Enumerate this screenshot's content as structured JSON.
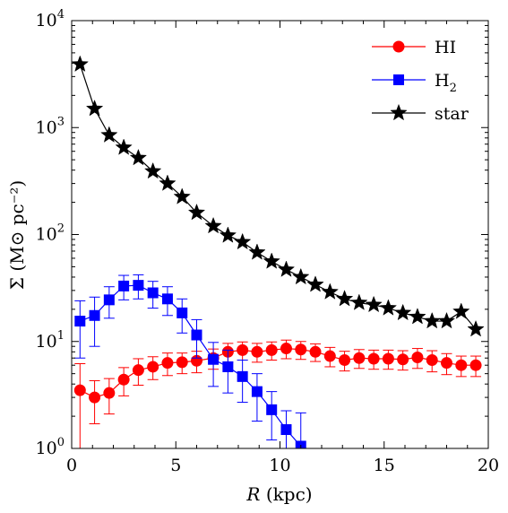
{
  "chart_data": {
    "type": "line",
    "title": "",
    "xlabel": "R (kpc)",
    "ylabel": "Σ (M⊙ pc⁻²)",
    "xlim": [
      0,
      20
    ],
    "ylim": [
      1,
      10000
    ],
    "yscale": "log",
    "grid": false,
    "legend_position": "top-right",
    "x_ticks": [
      0,
      5,
      10,
      15,
      20
    ],
    "x_tick_labels": [
      "0",
      "5",
      "10",
      "15",
      "20"
    ],
    "y_ticks": [
      1,
      10,
      100,
      1000,
      10000
    ],
    "y_tick_labels": [
      {
        "base": "10",
        "exp": "0"
      },
      {
        "base": "10",
        "exp": "1"
      },
      {
        "base": "10",
        "exp": "2"
      },
      {
        "base": "10",
        "exp": "3"
      },
      {
        "base": "10",
        "exp": "4"
      }
    ],
    "series": [
      {
        "name": "HI",
        "color": "#ff0000",
        "marker": "circle",
        "x": [
          0.4,
          1.1,
          1.8,
          2.5,
          3.2,
          3.9,
          4.6,
          5.3,
          6.0,
          6.8,
          7.5,
          8.2,
          8.9,
          9.6,
          10.3,
          11.0,
          11.7,
          12.4,
          13.1,
          13.8,
          14.5,
          15.2,
          15.9,
          16.6,
          17.3,
          18.0,
          18.7,
          19.4
        ],
        "values": [
          3.5,
          3.0,
          3.3,
          4.4,
          5.4,
          5.8,
          6.3,
          6.4,
          6.6,
          7.0,
          8.0,
          8.3,
          8.0,
          8.3,
          8.6,
          8.4,
          8.0,
          7.3,
          6.7,
          7.0,
          6.9,
          6.9,
          6.8,
          7.1,
          6.7,
          6.3,
          6.0,
          6.0
        ],
        "err_low": [
          3.4,
          1.3,
          1.2,
          1.3,
          1.5,
          1.4,
          1.5,
          1.4,
          1.5,
          1.5,
          1.6,
          1.6,
          1.6,
          1.6,
          1.7,
          1.6,
          1.5,
          1.5,
          1.4,
          1.4,
          1.4,
          1.4,
          1.4,
          1.5,
          1.5,
          1.4,
          1.3,
          1.3
        ],
        "err_high": [
          2.7,
          1.3,
          1.2,
          1.3,
          1.5,
          1.4,
          1.5,
          1.4,
          1.5,
          1.5,
          1.6,
          1.6,
          1.6,
          1.6,
          1.7,
          1.6,
          1.5,
          1.5,
          1.4,
          1.4,
          1.4,
          1.4,
          1.4,
          1.5,
          1.5,
          1.4,
          1.3,
          1.3
        ]
      },
      {
        "name": "H2",
        "name_sub": "2",
        "name_base": "H",
        "color": "#0000ff",
        "marker": "square",
        "x": [
          0.4,
          1.1,
          1.8,
          2.5,
          3.2,
          3.9,
          4.6,
          5.3,
          6.0,
          6.8,
          7.5,
          8.2,
          8.9,
          9.6,
          10.3,
          11.0
        ],
        "values": [
          15.5,
          17.5,
          24.5,
          33,
          33.5,
          28.5,
          25,
          18.5,
          11.5,
          6.8,
          5.8,
          4.7,
          3.4,
          2.3,
          1.5,
          1.05
        ],
        "err_low": [
          8.5,
          8.5,
          8.0,
          8.5,
          8.5,
          8.0,
          7.5,
          6.5,
          4.5,
          3.0,
          2.5,
          2.0,
          1.6,
          1.1,
          0.75,
          0.1
        ],
        "err_high": [
          8.5,
          8.5,
          8.0,
          8.5,
          8.5,
          8.0,
          7.5,
          6.5,
          4.5,
          3.0,
          2.5,
          2.0,
          1.6,
          1.1,
          0.75,
          1.1
        ]
      },
      {
        "name": "star",
        "color": "#000000",
        "marker": "star",
        "x": [
          0.4,
          1.1,
          1.8,
          2.5,
          3.2,
          3.9,
          4.6,
          5.3,
          6.0,
          6.8,
          7.5,
          8.2,
          8.9,
          9.6,
          10.3,
          11.0,
          11.7,
          12.4,
          13.1,
          13.8,
          14.5,
          15.2,
          15.9,
          16.6,
          17.3,
          18.0,
          18.7,
          19.4
        ],
        "values": [
          3900,
          1500,
          850,
          650,
          520,
          390,
          300,
          225,
          160,
          120,
          98,
          85,
          68,
          56,
          47,
          40,
          34,
          29,
          25,
          23,
          22,
          20.5,
          18.5,
          17,
          15.5,
          15.5,
          19,
          13
        ]
      }
    ]
  }
}
